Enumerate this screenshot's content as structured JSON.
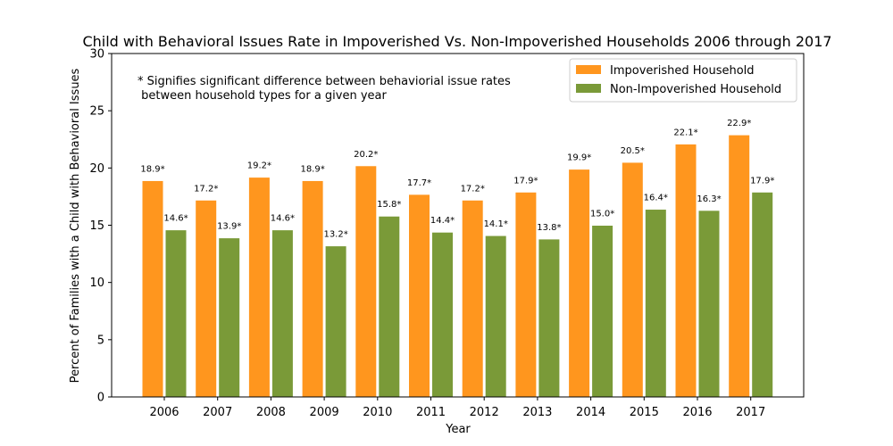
{
  "chart_data": {
    "type": "bar",
    "title": "Child with Behavioral Issues Rate in Impoverished Vs. Non-Impoverished Households 2006 through 2017",
    "xlabel": "Year",
    "ylabel": "Percent of Families with a Child with Behavioral Issues",
    "ylim": [
      0,
      30
    ],
    "yticks": [
      "0",
      "5",
      "10",
      "15",
      "20",
      "25",
      "30"
    ],
    "categories": [
      "2006",
      "2007",
      "2008",
      "2009",
      "2010",
      "2011",
      "2012",
      "2013",
      "2014",
      "2015",
      "2016",
      "2017"
    ],
    "series": [
      {
        "name": "Impoverished Household",
        "color": "#ff961e",
        "values": [
          18.9,
          17.2,
          19.2,
          18.9,
          20.2,
          17.7,
          17.2,
          17.9,
          19.9,
          20.5,
          22.1,
          22.9
        ],
        "labels": [
          "18.9*",
          "17.2*",
          "19.2*",
          "18.9*",
          "20.2*",
          "17.7*",
          "17.2*",
          "17.9*",
          "19.9*",
          "20.5*",
          "22.1*",
          "22.9*"
        ]
      },
      {
        "name": "Non-Impoverished Household",
        "color": "#7a9a38",
        "values": [
          14.6,
          13.9,
          14.6,
          13.2,
          15.8,
          14.4,
          14.1,
          13.8,
          15.0,
          16.4,
          16.3,
          17.9
        ],
        "labels": [
          "14.6*",
          "13.9*",
          "14.6*",
          "13.2*",
          "15.8*",
          "14.4*",
          "14.1*",
          "13.8*",
          "15.0*",
          "16.4*",
          "16.3*",
          "17.9*"
        ]
      }
    ],
    "annotation": [
      "* Signifies significant difference between behaviorial issue rates",
      " between household types for a given year"
    ],
    "legend_position": "top-right",
    "grid": false
  }
}
